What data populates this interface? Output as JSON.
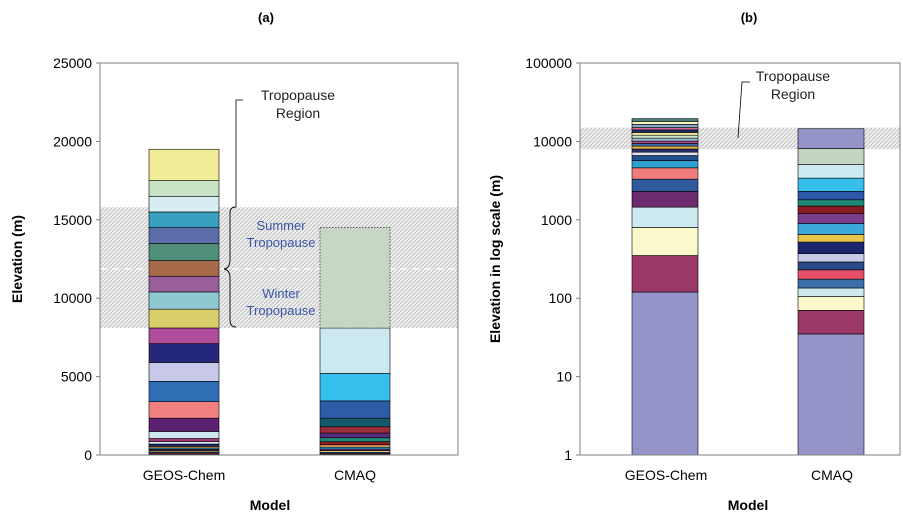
{
  "chart_data": [
    {
      "panel_label": "(a)",
      "type": "bar",
      "stacked": true,
      "categories": [
        "GEOS-Chem",
        "CMAQ"
      ],
      "xlabel": "Model",
      "ylabel": "Elevation (m)",
      "ylim": [
        0,
        25000
      ],
      "ytick_labels": [
        "0",
        "5000",
        "10000",
        "15000",
        "20000",
        "25000"
      ],
      "grid": false,
      "layer_tops": {
        "GEOS-Chem": [
          60,
          130,
          200,
          280,
          360,
          450,
          550,
          700,
          850,
          1050,
          1500,
          2350,
          3400,
          4700,
          5900,
          7100,
          8100,
          9300,
          10400,
          11400,
          12400,
          13500,
          14500,
          15500,
          16500,
          17500,
          19500
        ],
        "CMAQ": [
          40,
          100,
          180,
          280,
          380,
          500,
          650,
          850,
          1100,
          1400,
          1800,
          2350,
          3450,
          5200,
          8100,
          14500
        ]
      },
      "bands": [
        {
          "name": "Tropopause Region",
          "range": [
            8100,
            15800
          ]
        }
      ],
      "annotations": {
        "tropopause": [
          "Tropopause",
          "Region"
        ],
        "summer": [
          "Summer",
          "Tropopause"
        ],
        "winter": [
          "Winter",
          "Tropopause"
        ]
      }
    },
    {
      "panel_label": "(b)",
      "type": "bar",
      "stacked": true,
      "scale": "log",
      "categories": [
        "GEOS-Chem",
        "CMAQ"
      ],
      "xlabel": "Model",
      "ylabel": "Elevation in log scale (m)",
      "ylim": [
        1,
        100000
      ],
      "ytick_labels": [
        "1",
        "10",
        "100",
        "1000",
        "10000",
        "100000"
      ],
      "grid": false,
      "bands": [
        {
          "name": "Tropopause Region",
          "range": [
            8000,
            15000
          ]
        }
      ],
      "annotations": {
        "tropopause": [
          "Tropopause",
          "Region"
        ]
      }
    }
  ],
  "colors": {
    "geos": [
      "#0a0a0a",
      "#e8506a",
      "#2e5ca8",
      "#f5e97a",
      "#8a3a78",
      "#3aa8d8",
      "#f0b858",
      "#1c2570",
      "#d8eef5",
      "#a53878",
      "#cfe8f0",
      "#5c2070",
      "#f28080",
      "#2f6fb5",
      "#c8c8e8",
      "#25287a",
      "#b04c9c",
      "#d8cf6a",
      "#8ec8d0",
      "#9a5e9a",
      "#a66a4a",
      "#50907a",
      "#5e6eaa",
      "#3ba0c0",
      "#d8ecf4",
      "#c8e3c3",
      "#f0ec98"
    ],
    "cmaq": [
      "#101010",
      "#cc3355",
      "#2d57a8",
      "#f2e170",
      "#7a3d8c",
      "#32a2d6",
      "#f0a850",
      "#8a1c24",
      "#1f8a78",
      "#5a2c80",
      "#9b2c3a",
      "#145a6a",
      "#2f5ca6",
      "#35bfea",
      "#cce9f1",
      "#c3d5c0"
    ],
    "log_geos": [
      "#9494c8",
      "#9b3868",
      "#fbf8cc",
      "#cce9f0",
      "#6a2c6c",
      "#2e5a9c",
      "#f27c7c",
      "#2fa0d0",
      "#1f4f8c",
      "#e2e2f2",
      "#2f2f70",
      "#e8b34e",
      "#3a6fa8",
      "#b34a8c",
      "#9bc0d8",
      "#cfe3c8",
      "#f3eb9c",
      "#1f2f6a",
      "#cc6699",
      "#88a8c8",
      "#f8f4c0",
      "#4a8080"
    ],
    "log_cmaq": [
      "#9494c8",
      "#9b3868",
      "#fbf8cc",
      "#cce9f0",
      "#3a6fa8",
      "#e8506a",
      "#2a4a8c",
      "#c8c8e8",
      "#1c2570",
      "#e8c44a",
      "#3aa8d8",
      "#7a3d8c",
      "#8a1c24",
      "#1f8a78",
      "#2d57a8",
      "#35bfea",
      "#cce9f1",
      "#c3d5c0"
    ]
  }
}
